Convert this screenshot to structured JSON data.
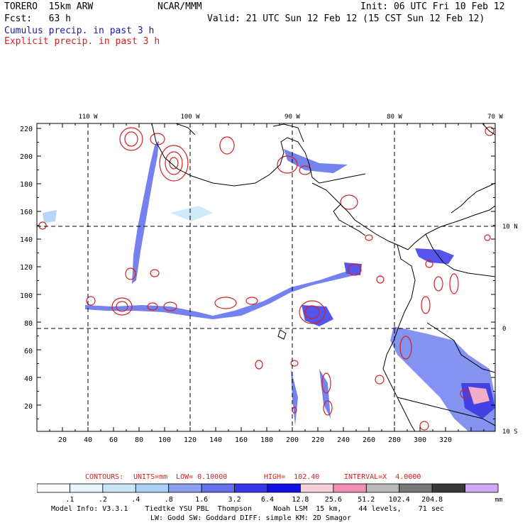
{
  "header": {
    "model": "TORERO  15km ARW",
    "org": "NCAR/MMM",
    "init": "Init: 06 UTC Fri 10 Feb 12",
    "fcst": "Fcst:   63 h",
    "valid": "Valid: 21 UTC Sun 12 Feb 12 (15 CST Sun 12 Feb 12)",
    "field1": "Cumulus precip. in past 3 h",
    "field2": "Explicit precip. in past 3 h",
    "field1_color": "#1a1aa0",
    "field2_color": "#d42020"
  },
  "map": {
    "lon_labels": [
      "110 W",
      "100 W",
      "90 W",
      "80 W",
      "70 W"
    ],
    "lat_labels": [
      "10 N",
      "0",
      "10 S"
    ],
    "y_ticks": [
      "220",
      "200",
      "180",
      "160",
      "140",
      "120",
      "100",
      "80",
      "60",
      "40",
      "20"
    ],
    "x_ticks": [
      "20",
      "40",
      "60",
      "80",
      "100",
      "120",
      "140",
      "160",
      "180",
      "200",
      "220",
      "240",
      "260",
      "280",
      "300",
      "320"
    ]
  },
  "contours": {
    "label": "CONTOURS:",
    "units": "UNITS=mm",
    "low": "LOW= 0.10000",
    "high": "HIGH=  102.40",
    "interval": "INTERVAL=X  4.0000"
  },
  "colorbar": {
    "colors": [
      "#ffffff",
      "#e6f4fc",
      "#c8e6f8",
      "#aad0f4",
      "#8c9ef0",
      "#6270ec",
      "#3838e8",
      "#1010e0",
      "#f8d0d8",
      "#f090b8",
      "#b8b8b8",
      "#787878",
      "#383838",
      "#d0a8f8"
    ],
    "labels": [
      ".1",
      ".2",
      ".4",
      ".8",
      "1.6",
      "3.2",
      "6.4",
      "12.8",
      "25.6",
      "51.2",
      "102.4",
      "204.8"
    ],
    "unit": "mm"
  },
  "footer": {
    "line1": "Model Info: V3.3.1    Tiedtke YSU PBL  Thompson     Noah LSM  15 km,    44 levels,    71 sec",
    "line2": "LW: Godd SW: Goddard DIFF: simple KM: 2D Smagor"
  }
}
